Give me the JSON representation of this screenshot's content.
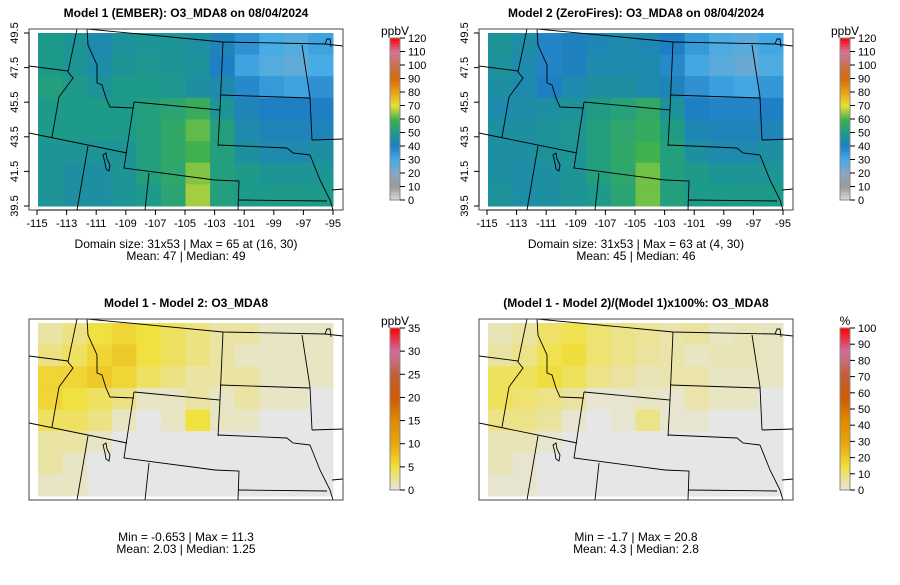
{
  "chart_data": [
    {
      "type": "heatmap",
      "title": "Model 1 (EMBER): O3_MDA8 on 08/04/2024",
      "unit_label": "ppbV",
      "scale": "conc",
      "colorbar_ticks": [
        0,
        10,
        20,
        30,
        40,
        50,
        60,
        70,
        80,
        90,
        100,
        110,
        120
      ],
      "range": [
        0,
        120
      ],
      "show_axes": true,
      "x_ticks": [
        "-115",
        "-113",
        "-111",
        "-109",
        "-107",
        "-105",
        "-103",
        "-101",
        "-99",
        "-97",
        "-95"
      ],
      "y_ticks": [
        "39.5",
        "41.5",
        "43.5",
        "45.5",
        "47.5",
        "49.5"
      ],
      "xlim": [
        -115,
        -95
      ],
      "ylim": [
        39.5,
        49.5
      ],
      "stats_line1": "Domain size: 31x53 | Max = 65 at (16, 30)",
      "stats_line2": "Mean: 47 |  Median: 49",
      "grid": [
        [
          50,
          48,
          44,
          47,
          48,
          48,
          46,
          42,
          36,
          30,
          28,
          32
        ],
        [
          50,
          48,
          45,
          48,
          49,
          48,
          47,
          40,
          32,
          28,
          26,
          30
        ],
        [
          52,
          50,
          47,
          50,
          50,
          49,
          46,
          44,
          38,
          34,
          32,
          36
        ],
        [
          50,
          50,
          50,
          50,
          52,
          54,
          58,
          48,
          42,
          40,
          40,
          40
        ],
        [
          50,
          50,
          50,
          50,
          52,
          56,
          62,
          52,
          44,
          42,
          42,
          42
        ],
        [
          48,
          48,
          48,
          48,
          52,
          56,
          60,
          52,
          46,
          44,
          44,
          46
        ],
        [
          48,
          46,
          46,
          48,
          52,
          55,
          64,
          52,
          50,
          48,
          48,
          48
        ],
        [
          48,
          46,
          46,
          48,
          50,
          54,
          66,
          52,
          50,
          50,
          50,
          50
        ]
      ]
    },
    {
      "type": "heatmap",
      "title": "Model 2 (ZeroFires): O3_MDA8 on 08/04/2024",
      "unit_label": "ppbV",
      "scale": "conc",
      "colorbar_ticks": [
        0,
        10,
        20,
        30,
        40,
        50,
        60,
        70,
        80,
        90,
        100,
        110,
        120
      ],
      "range": [
        0,
        120
      ],
      "show_axes": true,
      "x_ticks": [
        "-115",
        "-113",
        "-111",
        "-109",
        "-107",
        "-105",
        "-103",
        "-101",
        "-99",
        "-97",
        "-95"
      ],
      "y_ticks": [
        "39.5",
        "41.5",
        "43.5",
        "45.5",
        "47.5",
        "49.5"
      ],
      "xlim": [
        -115,
        -95
      ],
      "ylim": [
        39.5,
        49.5
      ],
      "stats_line1": "Domain size: 31x53 | Max = 63 at (4, 30)",
      "stats_line2": "Mean: 45 |  Median: 46",
      "grid": [
        [
          48,
          45,
          39,
          41,
          43,
          44,
          43,
          40,
          34,
          29,
          27,
          31
        ],
        [
          47,
          44,
          39,
          41,
          44,
          44,
          44,
          38,
          31,
          27,
          25,
          29
        ],
        [
          46,
          44,
          40,
          44,
          46,
          46,
          44,
          42,
          36,
          33,
          31,
          35
        ],
        [
          44,
          45,
          46,
          47,
          51,
          53,
          56,
          47,
          40,
          39,
          39,
          40
        ],
        [
          46,
          46,
          47,
          49,
          52,
          55,
          57,
          51,
          43,
          42,
          42,
          42
        ],
        [
          46,
          46,
          47,
          48,
          52,
          56,
          60,
          52,
          46,
          44,
          44,
          46
        ],
        [
          46,
          45,
          46,
          48,
          52,
          55,
          63,
          52,
          50,
          48,
          48,
          48
        ],
        [
          47,
          45,
          46,
          48,
          50,
          54,
          63,
          52,
          50,
          50,
          50,
          50
        ]
      ]
    },
    {
      "type": "heatmap",
      "title": "Model 1 - Model 2: O3_MDA8",
      "unit_label": "ppbV",
      "scale": "diff",
      "colorbar_ticks": [
        0,
        5,
        10,
        15,
        20,
        25,
        30,
        35
      ],
      "range": [
        0,
        35
      ],
      "show_axes": false,
      "stats_line1": "Min = -0.653 | Max = 11.3",
      "stats_line2": "Mean: 2.03 |  Median: 1.25",
      "grid": [
        [
          2,
          3,
          5,
          6,
          5,
          4,
          3,
          2,
          2,
          1,
          1,
          1
        ],
        [
          3,
          4,
          6,
          7,
          5,
          4,
          3,
          2,
          1,
          1,
          1,
          1
        ],
        [
          6,
          6,
          7,
          6,
          4,
          3,
          2,
          2,
          2,
          1,
          1,
          1
        ],
        [
          6,
          5,
          4,
          3,
          1,
          1,
          2,
          1,
          2,
          1,
          1,
          0
        ],
        [
          4,
          4,
          3,
          1,
          0,
          1,
          5,
          1,
          1,
          0,
          0,
          0
        ],
        [
          2,
          2,
          1,
          0,
          0,
          0,
          0,
          0,
          0,
          0,
          0,
          0
        ],
        [
          2,
          1,
          0,
          0,
          0,
          0,
          0,
          0,
          0,
          0,
          0,
          0
        ],
        [
          1,
          1,
          0,
          0,
          0,
          0,
          0,
          0,
          0,
          0,
          0,
          0
        ]
      ]
    },
    {
      "type": "heatmap",
      "title": "(Model 1 - Model 2)/(Model 1)x100%: O3_MDA8",
      "unit_label": "%",
      "scale": "diff",
      "colorbar_ticks": [
        0,
        10,
        20,
        30,
        40,
        50,
        60,
        70,
        80,
        90,
        100
      ],
      "range": [
        0,
        100
      ],
      "show_axes": false,
      "stats_line1": "Min = -1.7 | Max = 20.8",
      "stats_line2": "Mean: 4.3 |  Median: 2.8",
      "grid": [
        [
          4,
          6,
          11,
          13,
          10,
          8,
          7,
          5,
          6,
          3,
          4,
          3
        ],
        [
          6,
          8,
          13,
          15,
          10,
          8,
          6,
          5,
          3,
          4,
          4,
          3
        ],
        [
          12,
          12,
          15,
          12,
          8,
          6,
          4,
          5,
          5,
          3,
          3,
          3
        ],
        [
          12,
          10,
          8,
          6,
          2,
          2,
          3,
          2,
          5,
          3,
          3,
          0
        ],
        [
          8,
          8,
          6,
          2,
          0,
          2,
          8,
          2,
          2,
          0,
          0,
          0
        ],
        [
          4,
          4,
          2,
          0,
          0,
          0,
          0,
          0,
          0,
          0,
          0,
          0
        ],
        [
          4,
          2,
          0,
          0,
          0,
          0,
          0,
          0,
          0,
          0,
          0,
          0
        ],
        [
          2,
          2,
          0,
          0,
          0,
          0,
          0,
          0,
          0,
          0,
          0,
          0
        ]
      ]
    }
  ],
  "colors": {
    "conc_stops": [
      "#dcdcdc",
      "#9a9a9a",
      "#8aa6c0",
      "#46ace6",
      "#1f7fc4",
      "#1d9a8a",
      "#3fb150",
      "#e7e236",
      "#e8a314",
      "#d86a0a",
      "#c97050",
      "#d2779c",
      "#ff0000"
    ],
    "diff_stops": [
      "#e6e6e6",
      "#f0e040",
      "#e9a70a",
      "#e08a00",
      "#d05a00",
      "#c2603a",
      "#d070a0",
      "#ff0000"
    ]
  }
}
